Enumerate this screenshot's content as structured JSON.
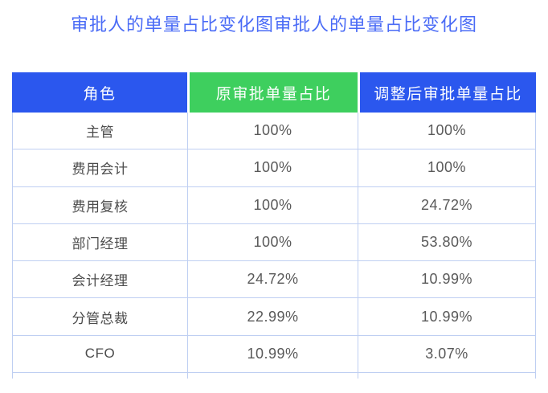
{
  "page": {
    "title": "审批人的单量占比变化图审批人的单量占比变化图"
  },
  "table": {
    "headers": {
      "role": "角色",
      "original": "原审批单量占比",
      "adjusted": "调整后审批单量占比"
    },
    "rows": [
      {
        "role": "主管",
        "original": "100%",
        "adjusted": "100%"
      },
      {
        "role": "费用会计",
        "original": "100%",
        "adjusted": "100%"
      },
      {
        "role": "费用复核",
        "original": "100%",
        "adjusted": "24.72%"
      },
      {
        "role": "部门经理",
        "original": "100%",
        "adjusted": "53.80%"
      },
      {
        "role": "会计经理",
        "original": "24.72%",
        "adjusted": "10.99%"
      },
      {
        "role": "分管总裁",
        "original": "22.99%",
        "adjusted": "10.99%"
      },
      {
        "role": "CFO",
        "original": "10.99%",
        "adjusted": "3.07%"
      }
    ]
  },
  "colors": {
    "title_text": "#4a6bf6",
    "header_blue": "#2b57ee",
    "header_green": "#3ecf5e",
    "header_text": "#ffffff",
    "grid_border": "#bfcff2",
    "role_text": "#4c4c4c",
    "value_text": "#595959",
    "background": "#ffffff"
  },
  "chart_data": {
    "type": "table",
    "title": "审批人的单量占比变化图审批人的单量占比变化图",
    "columns": [
      "角色",
      "原审批单量占比",
      "调整后审批单量占比"
    ],
    "rows": [
      [
        "主管",
        "100%",
        "100%"
      ],
      [
        "费用会计",
        "100%",
        "100%"
      ],
      [
        "费用复核",
        "100%",
        "24.72%"
      ],
      [
        "部门经理",
        "100%",
        "53.80%"
      ],
      [
        "会计经理",
        "24.72%",
        "10.99%"
      ],
      [
        "分管总裁",
        "22.99%",
        "10.99%"
      ],
      [
        "CFO",
        "10.99%",
        "3.07%"
      ]
    ]
  }
}
